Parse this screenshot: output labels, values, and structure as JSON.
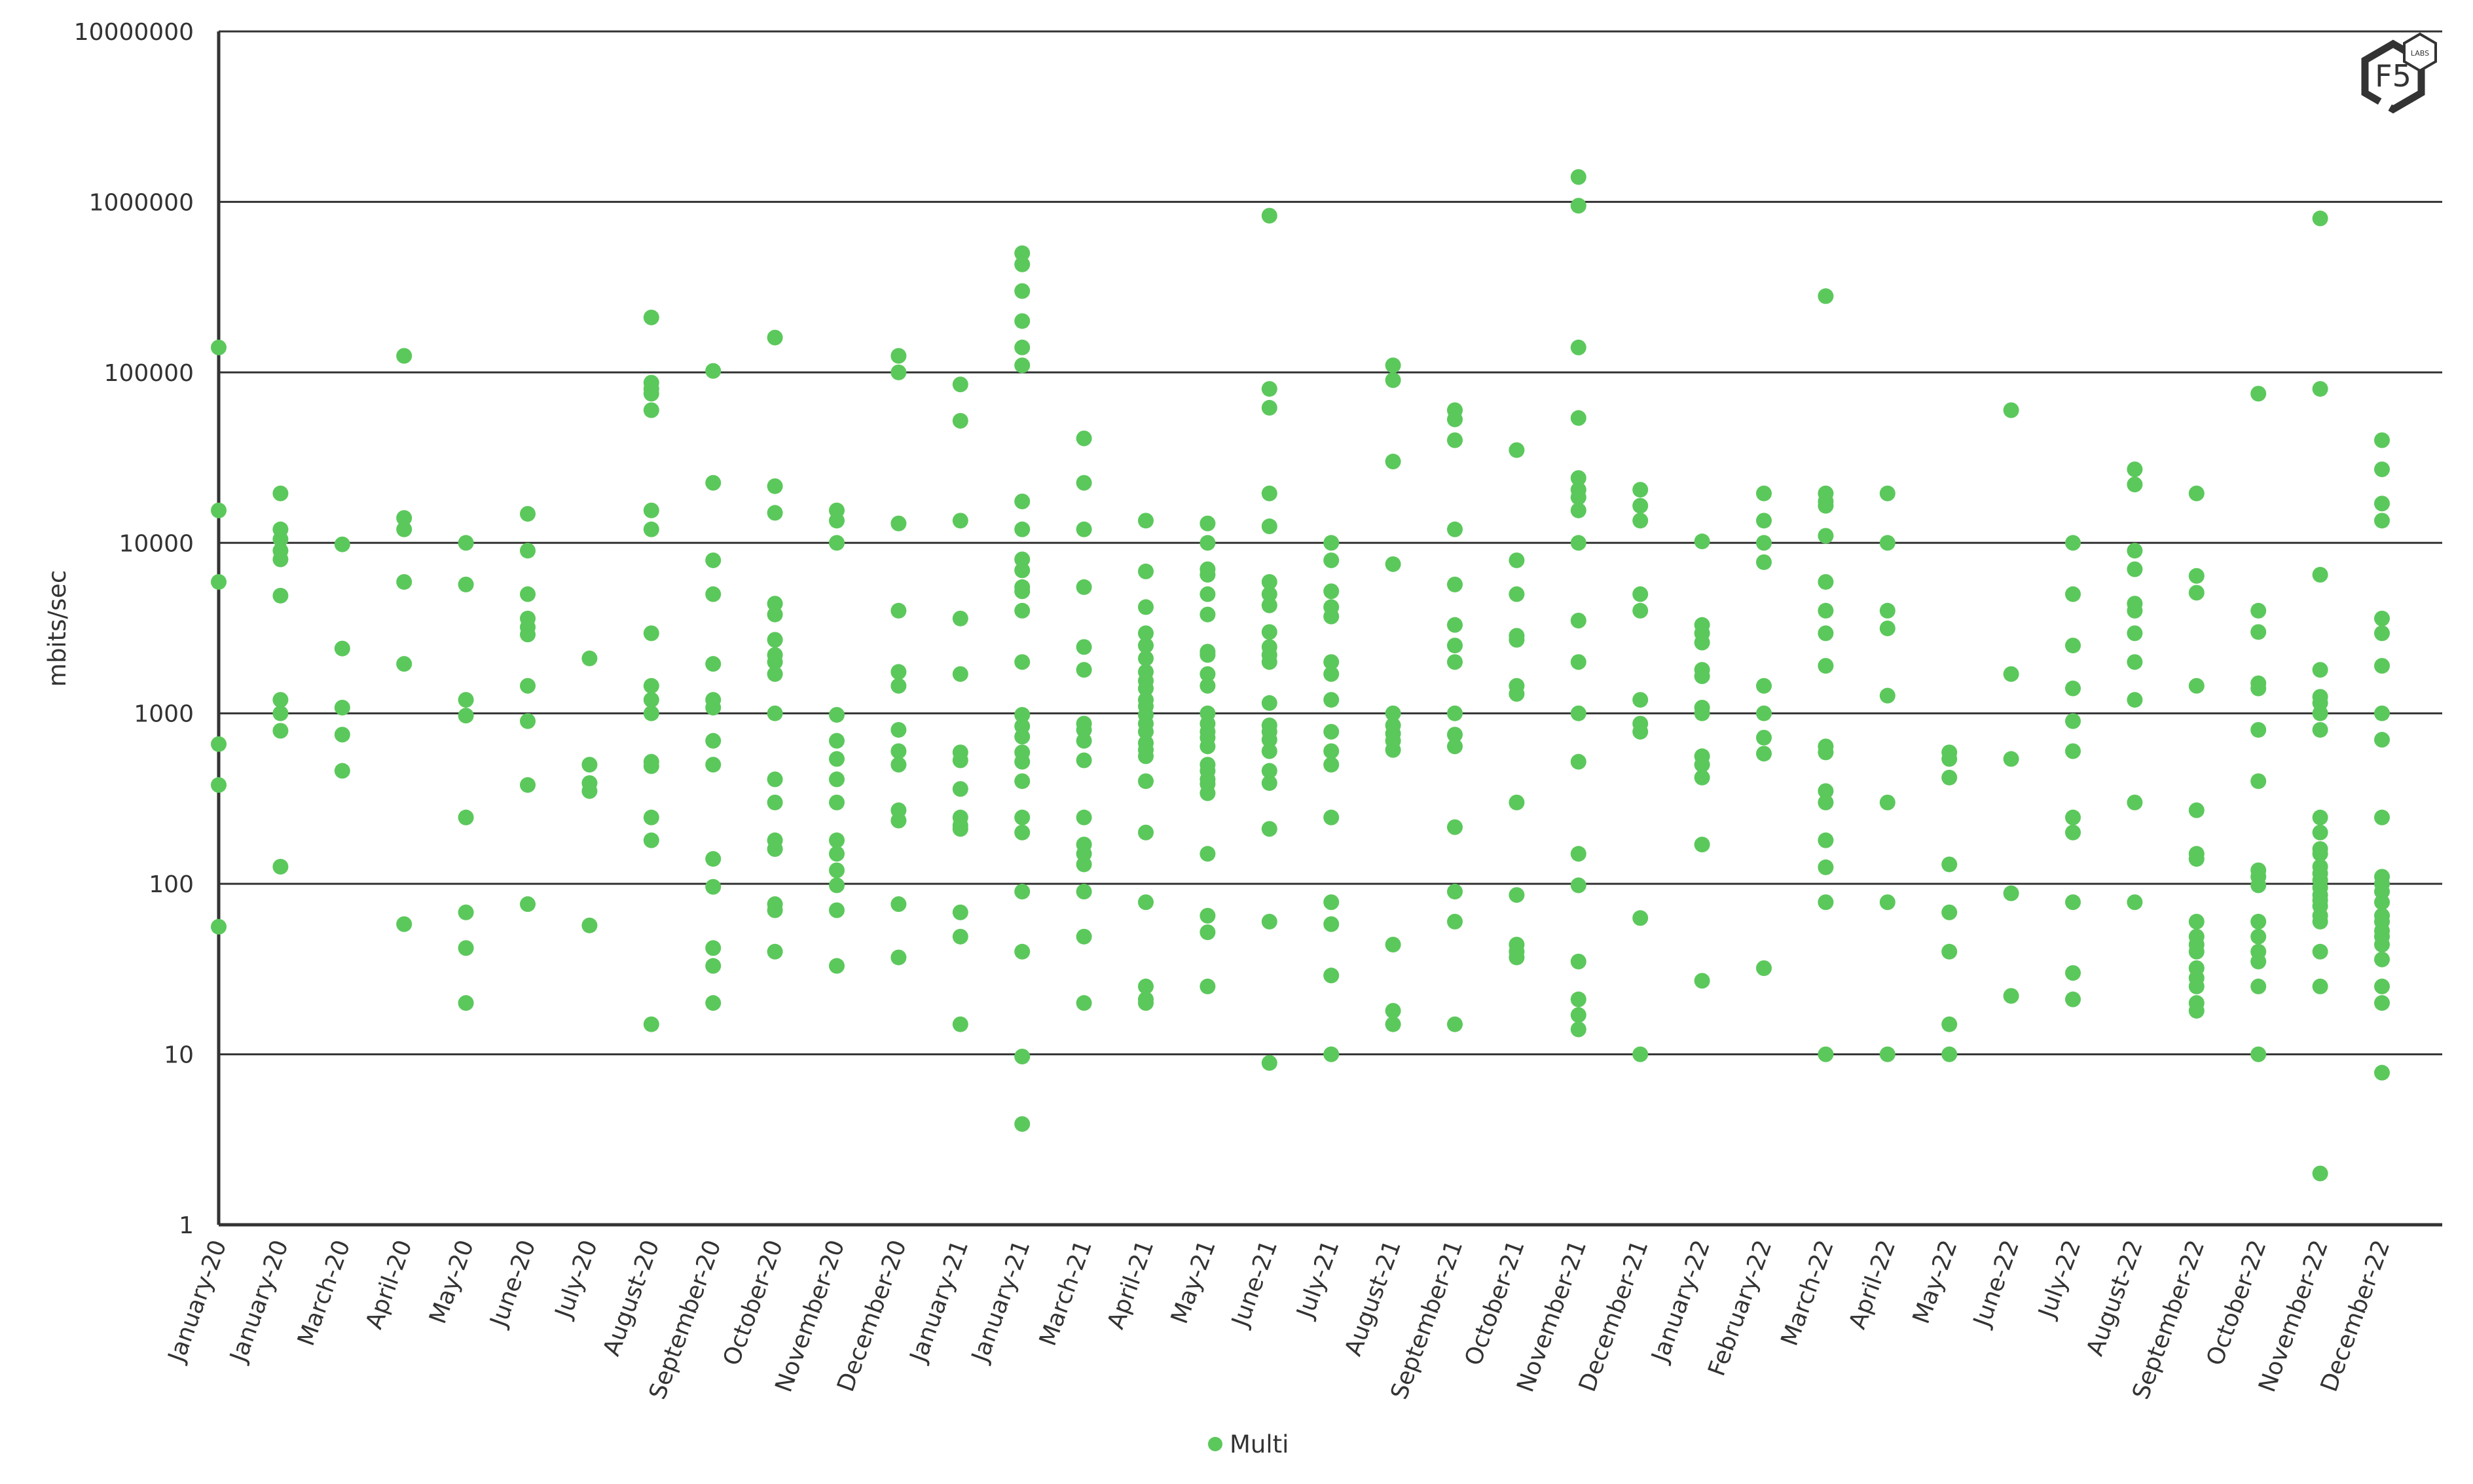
{
  "chart_data": {
    "type": "scatter",
    "title": "",
    "xlabel": "",
    "ylabel": "mbits/sec",
    "yscale": "log",
    "ylim": [
      1,
      10000000
    ],
    "yticks": [
      "1",
      "10",
      "100",
      "1000",
      "10000",
      "100000",
      "1000000",
      "10000000"
    ],
    "grid": "horizontal major gridlines",
    "legend_position": "bottom",
    "marker_color": "#5BC85B",
    "categories": [
      "January-20",
      "January-20",
      "March-20",
      "April-20",
      "May-20",
      "June-20",
      "July-20",
      "August-20",
      "September-20",
      "October-20",
      "November-20",
      "December-20",
      "January-21",
      "January-21",
      "March-21",
      "April-21",
      "May-21",
      "June-21",
      "July-21",
      "August-21",
      "September-21",
      "October-21",
      "November-21",
      "December-21",
      "January-22",
      "February-22",
      "March-22",
      "April-22",
      "May-22",
      "June-22",
      "July-22",
      "August-22",
      "September-22",
      "October-22",
      "November-22",
      "December-22"
    ],
    "series": [
      {
        "name": "Multi",
        "values": [
          [
            140000,
            15500,
            5900,
            660,
            380,
            56
          ],
          [
            19500,
            12000,
            10500,
            9000,
            8000,
            4900,
            1200,
            1000,
            790,
            126
          ],
          [
            9800,
            2400,
            1080,
            750,
            460
          ],
          [
            125000,
            14000,
            12000,
            5900,
            1950,
            58
          ],
          [
            10000,
            5700,
            1200,
            970,
            245,
            68,
            42,
            20
          ],
          [
            14800,
            9000,
            5000,
            3600,
            3200,
            2900,
            1450,
            900,
            380,
            76
          ],
          [
            2100,
            500,
            390,
            350,
            57
          ],
          [
            210000,
            87000,
            80000,
            75000,
            60000,
            15500,
            12000,
            2950,
            1450,
            1200,
            1000,
            520,
            490,
            245,
            180,
            15
          ],
          [
            102000,
            22500,
            7900,
            5000,
            1950,
            1200,
            1080,
            690,
            500,
            140,
            96,
            42,
            33,
            20
          ],
          [
            160000,
            21500,
            15000,
            4400,
            3800,
            2700,
            2200,
            2000,
            1700,
            1000,
            410,
            300,
            180,
            160,
            76,
            70,
            40
          ],
          [
            15500,
            13500,
            10000,
            980,
            690,
            540,
            410,
            300,
            180,
            150,
            120,
            98,
            70,
            33
          ],
          [
            125000,
            100000,
            13000,
            4000,
            1750,
            1450,
            800,
            600,
            500,
            270,
            235,
            76,
            37
          ],
          [
            85000,
            52000,
            13500,
            3600,
            1700,
            590,
            530,
            360,
            245,
            220,
            210,
            68,
            49,
            15
          ],
          [
            500000,
            430000,
            300000,
            200000,
            140000,
            110000,
            17500,
            12000,
            8000,
            6900,
            5500,
            5200,
            4000,
            2000,
            980,
            840,
            730,
            590,
            520,
            400,
            245,
            200,
            90,
            40,
            9.7,
            3.9
          ],
          [
            41000,
            22500,
            12000,
            5500,
            2450,
            1800,
            870,
            800,
            690,
            530,
            245,
            170,
            150,
            130,
            90,
            49,
            20
          ],
          [
            13500,
            6800,
            4200,
            2950,
            2500,
            2100,
            1750,
            1550,
            1400,
            1200,
            1100,
            980,
            870,
            780,
            670,
            610,
            560,
            400,
            200,
            78,
            25,
            21,
            20
          ],
          [
            13000,
            10000,
            7000,
            6500,
            5000,
            3800,
            2300,
            2200,
            1700,
            1450,
            1000,
            870,
            780,
            720,
            640,
            500,
            460,
            410,
            385,
            340,
            150,
            65,
            52,
            25
          ],
          [
            830000,
            80000,
            62000,
            19500,
            12500,
            5900,
            5000,
            4300,
            3000,
            2450,
            2200,
            2000,
            1150,
            850,
            780,
            700,
            600,
            460,
            390,
            210,
            60,
            8.9
          ],
          [
            10000,
            7900,
            5200,
            4200,
            3700,
            2000,
            1700,
            1200,
            780,
            600,
            500,
            245,
            78,
            58,
            29,
            10
          ],
          [
            110000,
            90000,
            30000,
            7500,
            1000,
            850,
            760,
            690,
            610,
            44,
            18,
            15
          ],
          [
            60000,
            53000,
            40000,
            12000,
            5700,
            3300,
            2500,
            2000,
            1000,
            750,
            640,
            215,
            90,
            60,
            15
          ],
          [
            35000,
            7900,
            5000,
            2850,
            2700,
            1450,
            1300,
            300,
            86,
            44,
            40,
            37
          ],
          [
            1400000,
            950000,
            140000,
            54000,
            24000,
            20500,
            18500,
            15500,
            10000,
            3500,
            2000,
            1000,
            520,
            150,
            98,
            35,
            21,
            17,
            14
          ],
          [
            20500,
            16500,
            13500,
            5000,
            4000,
            1200,
            870,
            780,
            63,
            10
          ],
          [
            10200,
            3300,
            2950,
            2600,
            1800,
            1650,
            1080,
            1000,
            560,
            500,
            420,
            170,
            27
          ],
          [
            19500,
            13500,
            10000,
            7700,
            1450,
            1000,
            720,
            580,
            32
          ],
          [
            280000,
            19500,
            17500,
            16500,
            11000,
            5900,
            4000,
            2950,
            1900,
            640,
            590,
            350,
            300,
            180,
            125,
            78,
            10
          ],
          [
            19500,
            10000,
            4000,
            3150,
            1270,
            300,
            78,
            10
          ],
          [
            590,
            540,
            420,
            130,
            68,
            40,
            15,
            10
          ],
          [
            60000,
            1700,
            540,
            88,
            22
          ],
          [
            10000,
            5000,
            2500,
            1400,
            900,
            600,
            245,
            200,
            78,
            30,
            21
          ],
          [
            27000,
            22000,
            9000,
            7000,
            4400,
            4000,
            2950,
            2000,
            1200,
            300,
            78
          ],
          [
            19500,
            6400,
            5100,
            1450,
            270,
            150,
            140,
            60,
            49,
            44,
            40,
            32,
            28,
            25,
            20,
            18
          ],
          [
            75000,
            4000,
            3000,
            1500,
            1400,
            800,
            400,
            120,
            110,
            98,
            60,
            49,
            40,
            35,
            25,
            10
          ],
          [
            800000,
            80000,
            6500,
            1800,
            1250,
            1150,
            1000,
            800,
            245,
            200,
            160,
            150,
            126,
            115,
            105,
            95,
            86,
            80,
            74,
            65,
            60,
            40,
            25,
            2
          ],
          [
            40000,
            27000,
            17000,
            13500,
            3600,
            2950,
            1900,
            1000,
            700,
            245,
            110,
            100,
            90,
            78,
            65,
            60,
            53,
            49,
            44,
            36,
            25,
            20,
            7.8
          ]
        ]
      }
    ]
  },
  "logo": {
    "text": "F5",
    "badge": "LABS",
    "icon": "f5-labs-hexagon-logo"
  }
}
